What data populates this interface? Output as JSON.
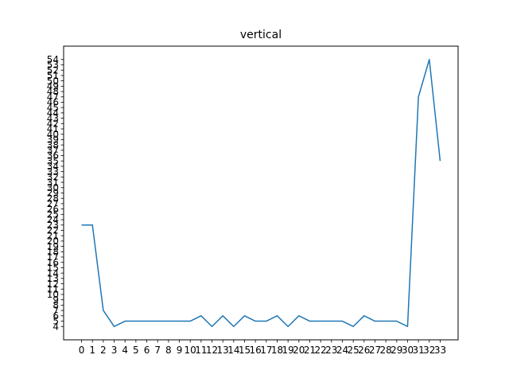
{
  "chart_data": {
    "type": "line",
    "title": "vertical",
    "xlabel": "",
    "ylabel": "",
    "x": [
      0,
      1,
      2,
      3,
      4,
      5,
      6,
      7,
      8,
      9,
      10,
      11,
      12,
      13,
      14,
      15,
      16,
      17,
      18,
      19,
      20,
      21,
      22,
      23,
      24,
      25,
      26,
      27,
      28,
      29,
      30,
      31,
      32,
      33
    ],
    "x_tick_labels": [
      "0",
      "1",
      "2",
      "3",
      "4",
      "5",
      "6",
      "7",
      "8",
      "9",
      "10",
      "11",
      "12",
      "13",
      "14",
      "15",
      "16",
      "17",
      "18",
      "19",
      "20",
      "21",
      "22",
      "23",
      "24",
      "25",
      "26",
      "27",
      "28",
      "29",
      "30",
      "31",
      "32",
      "33"
    ],
    "y_tick_labels": [
      "4",
      "5",
      "6",
      "7",
      "8",
      "9",
      "10",
      "11",
      "12",
      "13",
      "14",
      "15",
      "16",
      "17",
      "18",
      "19",
      "20",
      "21",
      "22",
      "23",
      "24",
      "25",
      "26",
      "27",
      "28",
      "29",
      "30",
      "31",
      "32",
      "33",
      "34",
      "35",
      "36",
      "37",
      "38",
      "39",
      "40",
      "41",
      "42",
      "43",
      "44",
      "45",
      "46",
      "47",
      "48",
      "49",
      "50",
      "51",
      "52",
      "53",
      "54"
    ],
    "series": [
      {
        "color": "#1f77b4",
        "values": [
          23,
          23,
          7,
          4,
          5,
          5,
          5,
          5,
          5,
          5,
          5,
          6,
          4,
          6,
          4,
          6,
          5,
          5,
          6,
          4,
          6,
          5,
          5,
          5,
          5,
          4,
          6,
          5,
          5,
          5,
          4,
          47,
          54,
          35
        ]
      }
    ],
    "xlim": [
      -1.65,
      34.65
    ],
    "ylim": [
      1.5,
      56.5
    ],
    "grid": false,
    "legend": false
  }
}
